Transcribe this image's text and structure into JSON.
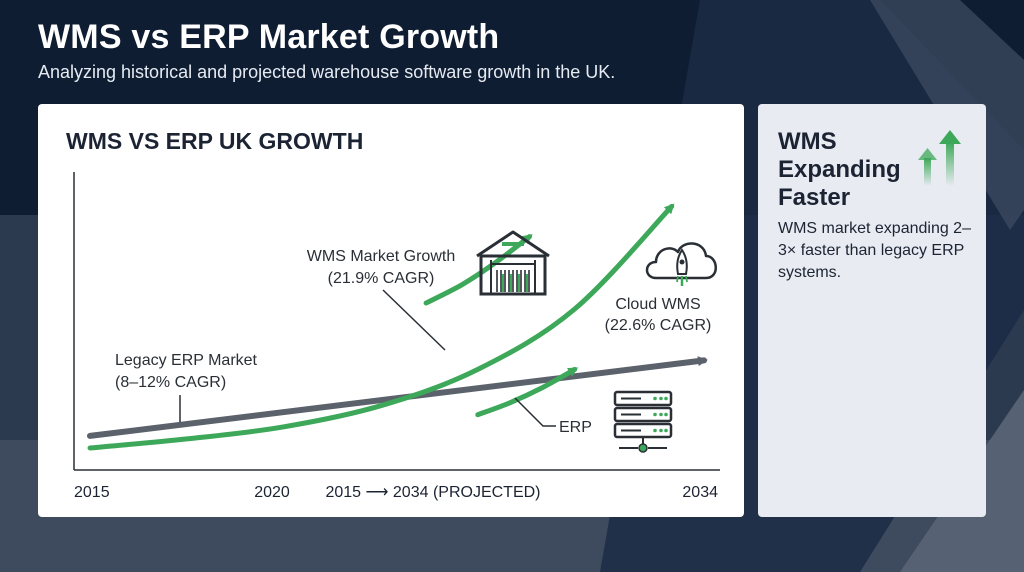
{
  "header": {
    "title": "WMS vs ERP Market Growth",
    "subtitle": "Analyzing historical and projected warehouse software growth in the UK."
  },
  "colors": {
    "wms": "#3ea85a",
    "erp": "#5c626b",
    "cloud": "#3ea85a",
    "background": "#0f1d33"
  },
  "chart_data": {
    "type": "line",
    "title": "WMS VS ERP UK GROWTH",
    "xlabel": "2015 ⟶ 2034 (PROJECTED)",
    "ylabel": "",
    "x_range": [
      2015,
      2034
    ],
    "x_ticks": [
      "2015",
      "2020",
      "2034"
    ],
    "grid": false,
    "series": [
      {
        "name": "WMS",
        "label": "WMS Market Growth",
        "sublabel": "(21.9% CAGR)",
        "x": [
          2015,
          2018,
          2021,
          2024,
          2027,
          2030,
          2033
        ],
        "y": [
          2,
          5,
          9,
          16,
          28,
          48,
          82
        ]
      },
      {
        "name": "ERP",
        "label": "Legacy ERP Market",
        "sublabel": "(8–12% CAGR)",
        "end_label": "ERP",
        "x": [
          2015,
          2034
        ],
        "y": [
          6,
          31
        ]
      },
      {
        "name": "Cloud WMS",
        "label": "Cloud WMS",
        "sublabel": "(22.6% CAGR)",
        "x": [
          2027,
          2028,
          2029,
          2030
        ],
        "y": [
          13,
          17,
          22,
          28
        ]
      },
      {
        "name": "Outer arrow",
        "x": [
          2025.4,
          2026.5,
          2027.5,
          2028.6
        ],
        "y": [
          50,
          56,
          63,
          72
        ]
      }
    ]
  },
  "side_panel": {
    "title": "WMS Expanding Faster",
    "text": "WMS market expanding 2–3× faster than legacy ERP systems.",
    "icon": "growth-arrows-icon"
  },
  "icons": {
    "warehouse": "warehouse-icon",
    "cloud": "cloud-rocket-icon",
    "server": "server-stack-icon"
  }
}
